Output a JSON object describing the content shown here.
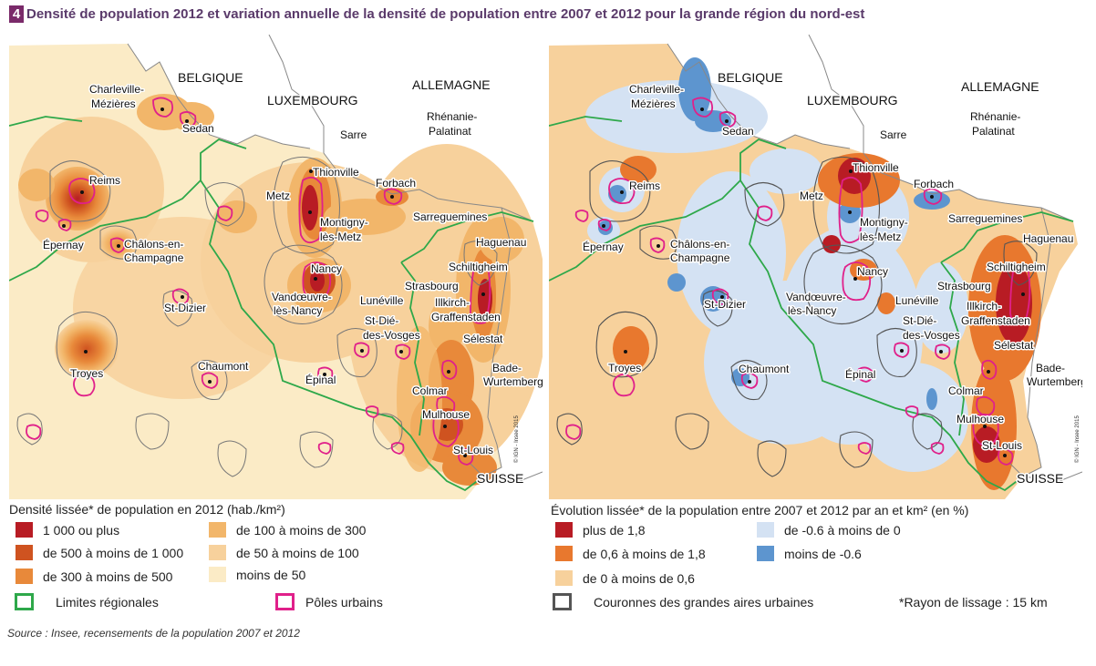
{
  "figure": {
    "number": "4",
    "title": "Densité de population 2012 et variation annuelle de la densité de population entre 2007 et 2012 pour la grande région du nord-est"
  },
  "colors": {
    "regional_border": "#2ea84a",
    "urban_pole": "#e0208a",
    "crown": "#777777",
    "title_accent": "#7a2a6a"
  },
  "left_map": {
    "countries": [
      "BELGIQUE",
      "LUXEMBOURG",
      "ALLEMAGNE",
      "SUISSE"
    ],
    "regions": [
      "Sarre",
      "Rhénanie-",
      "Palatinat",
      "Bade-",
      "Wurtemberg"
    ],
    "cities": [
      "Charleville-",
      "Mézières",
      "Sedan",
      "Reims",
      "Épernay",
      "Châlons-en-",
      "Champagne",
      "Thionville",
      "Metz",
      "Forbach",
      "Sarreguemines",
      "Montigny-",
      "lès-Metz",
      "Nancy",
      "Vandœuvre-",
      "lès-Nancy",
      "Haguenau",
      "Schiltigheim",
      "Strasbourg",
      "Illkirch-",
      "Graffenstaden",
      "St-Dizier",
      "Lunéville",
      "St-Dié-",
      "des-Vosges",
      "Sélestat",
      "Troyes",
      "Chaumont",
      "Épinal",
      "Colmar",
      "Mulhouse",
      "St-Louis"
    ],
    "copyright": "© IGN - Insee 2015"
  },
  "right_map": {
    "countries": [
      "BELGIQUE",
      "LUXEMBOURG",
      "ALLEMAGNE",
      "SUISSE"
    ],
    "regions": [
      "Sarre",
      "Rhénanie-",
      "Palatinat",
      "Bade-",
      "Wurtemberg"
    ],
    "cities": [
      "Charleville-",
      "Mézières",
      "Sedan",
      "Reims",
      "Épernay",
      "Châlons-en-",
      "Champagne",
      "Thionville",
      "Metz",
      "Forbach",
      "Sarreguemines",
      "Montigny-",
      "lès-Metz",
      "Nancy",
      "Vandœuvre-",
      "lès-Nancy",
      "Haguenau",
      "Schiltigheim",
      "Strasbourg",
      "Illkirch-",
      "Graffenstaden",
      "St-Dizier",
      "Lunéville",
      "St-Dié-",
      "des-Vosges",
      "Sélestat",
      "Troyes",
      "Chaumont",
      "Épinal",
      "Colmar",
      "Mulhouse",
      "St-Louis"
    ],
    "copyright": "© IGN - Insee 2015"
  },
  "legend_density": {
    "title": "Densité lissée* de population en 2012 (hab./km²)",
    "classes": [
      {
        "label": "1 000 ou plus",
        "color": "#b81c24"
      },
      {
        "label": "de 500 à moins de 1 000",
        "color": "#cf5320"
      },
      {
        "label": "de 300 à moins de 500",
        "color": "#e8893a"
      },
      {
        "label": "de 100 à moins de 300",
        "color": "#f2b66a"
      },
      {
        "label": "de 50 à moins de 100",
        "color": "#f7d19c"
      },
      {
        "label": "moins de 50",
        "color": "#fbebc6"
      }
    ],
    "regional_limits": "Limites régionales",
    "urban_poles": "Pôles urbains"
  },
  "legend_change": {
    "title": "Évolution lissée* de la population entre 2007 et 2012 par an et km² (en %)",
    "classes": [
      {
        "label": "plus de 1,8",
        "color": "#b81c24"
      },
      {
        "label": "de 0,6 à moins de 1,8",
        "color": "#e8782e"
      },
      {
        "label": "de 0 à moins de 0,6",
        "color": "#f7d19c"
      },
      {
        "label": "de -0.6 à moins de 0",
        "color": "#d4e2f3"
      },
      {
        "label": "moins de -0.6",
        "color": "#5d95cf"
      }
    ],
    "crowns": "Couronnes des grandes aires urbaines"
  },
  "note": "*Rayon de lissage : 15 km",
  "source": "Source : Insee, recensements de la population 2007 et 2012"
}
